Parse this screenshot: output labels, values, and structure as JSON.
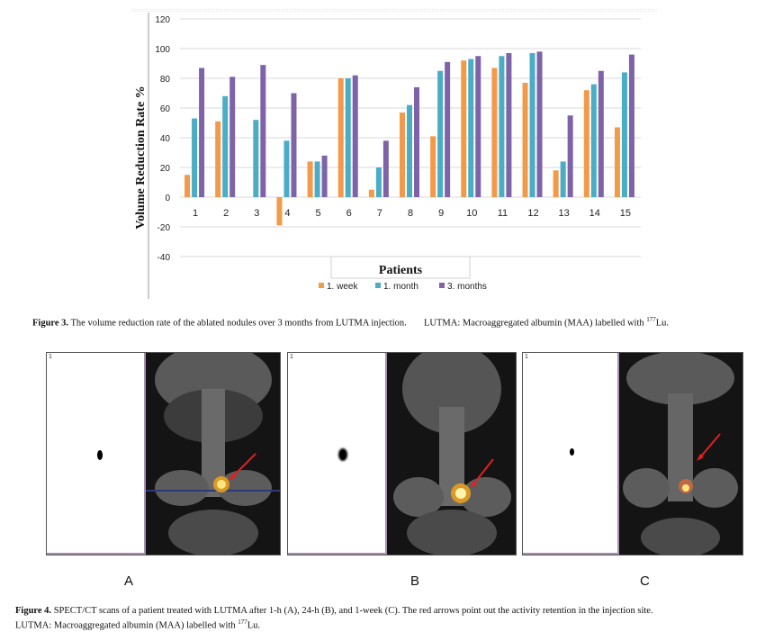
{
  "chart_data": {
    "type": "bar",
    "ylabel": "Volume Reduction Rate %",
    "xlabel": "Patients",
    "ylim": [
      -40,
      120
    ],
    "yticks": [
      "120",
      "100",
      "80",
      "60",
      "40",
      "20",
      "0",
      "-20",
      "-40"
    ],
    "categories": [
      "1",
      "2",
      "3",
      "4",
      "5",
      "6",
      "7",
      "8",
      "9",
      "10",
      "11",
      "12",
      "13",
      "14",
      "15"
    ],
    "series": [
      {
        "name": "1. week",
        "color": "#f39a4a",
        "values": [
          15,
          51,
          0,
          -19,
          24,
          80,
          5,
          57,
          41,
          92,
          87,
          77,
          18,
          72,
          47
        ]
      },
      {
        "name": "1. month",
        "color": "#4bacc6",
        "values": [
          53,
          68,
          52,
          38,
          24,
          80,
          20,
          62,
          85,
          93,
          95,
          97,
          24,
          76,
          84
        ]
      },
      {
        "name": "3. months",
        "color": "#7f63a8",
        "values": [
          87,
          81,
          89,
          70,
          28,
          82,
          38,
          74,
          91,
          95,
          97,
          98,
          55,
          85,
          96
        ]
      }
    ],
    "grid": true,
    "legend": "bottom"
  },
  "figure3": {
    "label": "Figure 3.",
    "text": "The volume reduction rate of the ablated nodules over 3 months from LUTMA injection.",
    "abbr": "LUTMA: Macroaggregated albumin (MAA) labelled with",
    "isotope_sup": "177",
    "isotope": "Lu."
  },
  "figure4": {
    "label": "Figure 4.",
    "text": "SPECT/CT scans of a patient treated with LUTMA after 1-h (A), 24-h (B), and 1-week (C). The red arrows point out the activity retention in the injection site.",
    "abbr": "LUTMA: Macroaggregated albumin (MAA) labelled with",
    "isotope_sup": "177",
    "isotope": "Lu.",
    "panels": [
      {
        "label": "A",
        "marker": "1"
      },
      {
        "label": "B",
        "marker": "1"
      },
      {
        "label": "C",
        "marker": "1"
      }
    ]
  }
}
